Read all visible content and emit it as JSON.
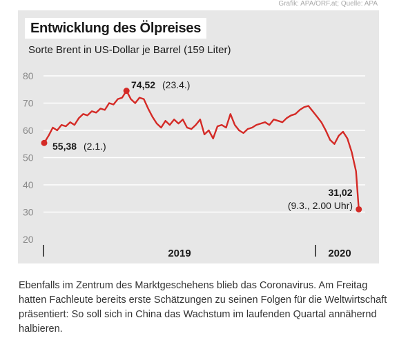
{
  "credit": "Grafik: APA/ORF.at; Quelle: APA",
  "chart_data": {
    "type": "line",
    "title": "Entwicklung des Ölpreises",
    "subtitle": "Sorte Brent in US-Dollar je Barrel (159 Liter)",
    "ylim": [
      20,
      80
    ],
    "yticks": [
      "80",
      "70",
      "60",
      "50",
      "40",
      "30",
      "20"
    ],
    "xlabel": "",
    "ylabel": "",
    "x_tick_labels": [
      "2019",
      "2020"
    ],
    "grid": true,
    "line_color": "#d42a26",
    "series": [
      {
        "values": [
          55.38,
          58.0,
          61.0,
          60.0,
          62.0,
          61.5,
          63.0,
          62.0,
          64.5,
          66.0,
          65.5,
          67.0,
          66.5,
          68.0,
          67.5,
          70.0,
          69.5,
          71.5,
          72.0,
          74.52,
          71.5,
          70.0,
          72.0,
          71.5,
          68.0,
          65.0,
          62.5,
          61.0,
          63.5,
          62.0,
          64.0,
          62.5,
          64.0,
          61.0,
          60.5,
          62.0,
          64.0,
          58.5,
          60.0,
          57.0,
          61.5,
          62.0,
          61.0,
          66.0,
          62.0,
          60.0,
          59.0,
          60.5,
          61.0,
          62.0,
          62.5,
          63.0,
          62.0,
          64.0,
          63.5,
          63.0,
          64.5,
          65.5,
          66.0,
          67.5,
          68.5,
          69.0,
          67.0,
          65.0,
          63.0,
          60.0,
          56.5,
          55.0,
          58.0,
          59.5,
          57.0,
          52.0,
          45.0,
          31.02
        ]
      }
    ],
    "annotations": [
      {
        "value": "55,38",
        "label": "(2.1.)"
      },
      {
        "value": "74,52",
        "label": "(23.4.)"
      },
      {
        "value": "31,02",
        "label": "(9.3., 2.00 Uhr)"
      }
    ]
  },
  "body_text": "Ebenfalls im Zentrum des Marktgeschehens blieb das Coronavirus. Am Freitag hatten Fachleute bereits erste Schätzungen zu seinen Folgen für die Weltwirtschaft präsentiert: So soll sich in China das Wachstum im laufenden Quartal annähernd halbieren."
}
